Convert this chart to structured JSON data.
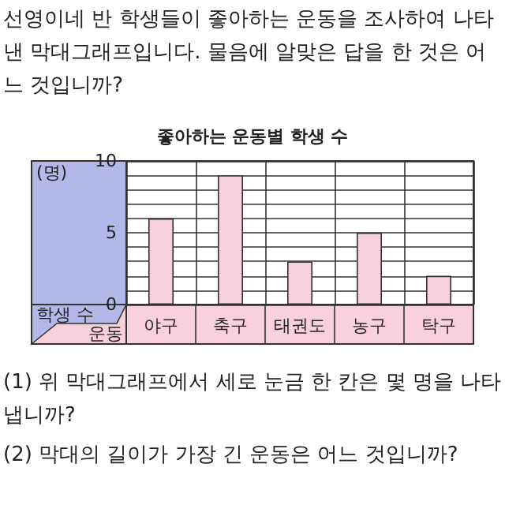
{
  "chart_data": {
    "type": "bar",
    "title": "좋아하는 운동별 학생 수",
    "xlabel": "운동",
    "ylabel": "학생 수",
    "annotations": [
      "선영이네 반 학생들이 좋아하는 운동을 조사하여 나타낸 막대그래프입니다. 물음에 알맞은 답을 한 것은 어느 것입니까?",
      "(명)",
      "(1) 위 막대그래프에서 세로 눈금 한 칸은 몇 명을 나타냅니까?",
      "(2) 막대의 길이가 가장 긴 운동은 어느 것입니까?"
    ],
    "categories": [
      "야구",
      "축구",
      "태권도",
      "농구",
      "탁구"
    ],
    "values": [
      6,
      9,
      3,
      5,
      2
    ],
    "color": "#f7d0dc",
    "ylim": [
      0,
      10
    ],
    "yticks": [
      0,
      {
        "value": 1,
        "label": null
      },
      {
        "value": 2,
        "label": null
      },
      {
        "value": 3,
        "label": null
      },
      {
        "value": 4,
        "label": null
      },
      5,
      {
        "value": 6,
        "label": null
      },
      {
        "value": 7,
        "label": null
      },
      {
        "value": 8,
        "label": null
      },
      {
        "value": 9,
        "label": null
      },
      10
    ],
    "grid": true
  }
}
